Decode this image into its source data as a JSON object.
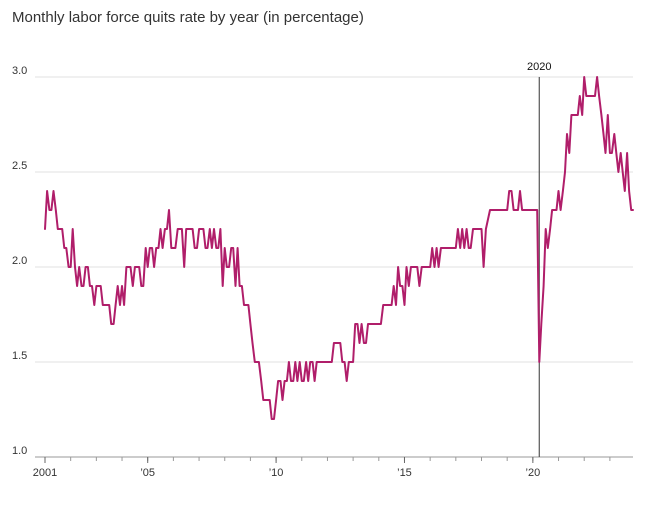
{
  "chart_data": {
    "type": "line",
    "title": "Monthly labor force quits rate by year (in percentage)",
    "xlabel": "",
    "ylabel": "",
    "xlim": [
      2001.0,
      2023.9
    ],
    "ylim": [
      1.0,
      3.0
    ],
    "y_ticks": [
      {
        "value": 1.0,
        "label": "1.0"
      },
      {
        "value": 1.5,
        "label": "1.5"
      },
      {
        "value": 2.0,
        "label": "2.0"
      },
      {
        "value": 2.5,
        "label": "2.5"
      },
      {
        "value": 3.0,
        "label": "3.0"
      }
    ],
    "x_ticks": [
      {
        "value": 2001,
        "label": "2001"
      },
      {
        "value": 2005,
        "label": "’05"
      },
      {
        "value": 2010,
        "label": "’10"
      },
      {
        "value": 2015,
        "label": "’15"
      },
      {
        "value": 2020,
        "label": "’20"
      }
    ],
    "grid": "horizontal",
    "annotation": {
      "x": 2020.25,
      "label": "2020"
    },
    "colors": {
      "line": "#b01e6a",
      "grid": "#e2e2e2",
      "annotation": "#555555"
    },
    "series": [
      {
        "points": [
          [
            2001.0,
            2.2
          ],
          [
            2001.08,
            2.4
          ],
          [
            2001.17,
            2.3
          ],
          [
            2001.25,
            2.3
          ],
          [
            2001.33,
            2.4
          ],
          [
            2001.42,
            2.3
          ],
          [
            2001.5,
            2.2
          ],
          [
            2001.67,
            2.2
          ],
          [
            2001.75,
            2.1
          ],
          [
            2001.83,
            2.1
          ],
          [
            2001.92,
            2.0
          ],
          [
            2002.0,
            2.0
          ],
          [
            2002.08,
            2.2
          ],
          [
            2002.17,
            2.0
          ],
          [
            2002.25,
            1.9
          ],
          [
            2002.33,
            2.0
          ],
          [
            2002.42,
            1.9
          ],
          [
            2002.5,
            1.9
          ],
          [
            2002.58,
            2.0
          ],
          [
            2002.67,
            2.0
          ],
          [
            2002.75,
            1.9
          ],
          [
            2002.83,
            1.9
          ],
          [
            2002.92,
            1.8
          ],
          [
            2003.0,
            1.9
          ],
          [
            2003.17,
            1.9
          ],
          [
            2003.25,
            1.8
          ],
          [
            2003.5,
            1.8
          ],
          [
            2003.58,
            1.7
          ],
          [
            2003.67,
            1.7
          ],
          [
            2003.75,
            1.8
          ],
          [
            2003.83,
            1.9
          ],
          [
            2003.92,
            1.8
          ],
          [
            2004.0,
            1.9
          ],
          [
            2004.08,
            1.8
          ],
          [
            2004.17,
            2.0
          ],
          [
            2004.33,
            2.0
          ],
          [
            2004.42,
            1.9
          ],
          [
            2004.5,
            2.0
          ],
          [
            2004.67,
            2.0
          ],
          [
            2004.75,
            1.9
          ],
          [
            2004.83,
            1.9
          ],
          [
            2004.92,
            2.1
          ],
          [
            2005.0,
            2.0
          ],
          [
            2005.08,
            2.1
          ],
          [
            2005.17,
            2.1
          ],
          [
            2005.25,
            2.0
          ],
          [
            2005.33,
            2.1
          ],
          [
            2005.42,
            2.1
          ],
          [
            2005.5,
            2.2
          ],
          [
            2005.58,
            2.1
          ],
          [
            2005.67,
            2.2
          ],
          [
            2005.75,
            2.2
          ],
          [
            2005.83,
            2.3
          ],
          [
            2005.92,
            2.1
          ],
          [
            2006.08,
            2.1
          ],
          [
            2006.17,
            2.2
          ],
          [
            2006.33,
            2.2
          ],
          [
            2006.42,
            2.0
          ],
          [
            2006.5,
            2.2
          ],
          [
            2006.75,
            2.2
          ],
          [
            2006.83,
            2.1
          ],
          [
            2006.92,
            2.1
          ],
          [
            2007.0,
            2.2
          ],
          [
            2007.17,
            2.2
          ],
          [
            2007.25,
            2.1
          ],
          [
            2007.33,
            2.1
          ],
          [
            2007.42,
            2.2
          ],
          [
            2007.5,
            2.1
          ],
          [
            2007.58,
            2.2
          ],
          [
            2007.67,
            2.1
          ],
          [
            2007.75,
            2.1
          ],
          [
            2007.83,
            2.2
          ],
          [
            2007.92,
            1.9
          ],
          [
            2008.0,
            2.1
          ],
          [
            2008.08,
            2.0
          ],
          [
            2008.17,
            2.0
          ],
          [
            2008.25,
            2.1
          ],
          [
            2008.33,
            2.1
          ],
          [
            2008.42,
            1.9
          ],
          [
            2008.5,
            2.1
          ],
          [
            2008.58,
            1.9
          ],
          [
            2008.67,
            1.9
          ],
          [
            2008.75,
            1.8
          ],
          [
            2008.92,
            1.8
          ],
          [
            2009.0,
            1.7
          ],
          [
            2009.08,
            1.6
          ],
          [
            2009.17,
            1.5
          ],
          [
            2009.33,
            1.5
          ],
          [
            2009.42,
            1.4
          ],
          [
            2009.5,
            1.3
          ],
          [
            2009.75,
            1.3
          ],
          [
            2009.83,
            1.2
          ],
          [
            2009.92,
            1.2
          ],
          [
            2010.0,
            1.3
          ],
          [
            2010.08,
            1.4
          ],
          [
            2010.17,
            1.4
          ],
          [
            2010.25,
            1.3
          ],
          [
            2010.33,
            1.4
          ],
          [
            2010.42,
            1.4
          ],
          [
            2010.5,
            1.5
          ],
          [
            2010.58,
            1.4
          ],
          [
            2010.67,
            1.4
          ],
          [
            2010.75,
            1.5
          ],
          [
            2010.83,
            1.4
          ],
          [
            2010.92,
            1.5
          ],
          [
            2011.0,
            1.4
          ],
          [
            2011.08,
            1.4
          ],
          [
            2011.17,
            1.5
          ],
          [
            2011.25,
            1.4
          ],
          [
            2011.33,
            1.5
          ],
          [
            2011.42,
            1.5
          ],
          [
            2011.5,
            1.4
          ],
          [
            2011.58,
            1.5
          ],
          [
            2012.0,
            1.5
          ],
          [
            2012.17,
            1.5
          ],
          [
            2012.25,
            1.6
          ],
          [
            2012.5,
            1.6
          ],
          [
            2012.58,
            1.5
          ],
          [
            2012.67,
            1.5
          ],
          [
            2012.75,
            1.4
          ],
          [
            2012.83,
            1.5
          ],
          [
            2013.0,
            1.5
          ],
          [
            2013.08,
            1.7
          ],
          [
            2013.17,
            1.7
          ],
          [
            2013.25,
            1.6
          ],
          [
            2013.33,
            1.7
          ],
          [
            2013.42,
            1.6
          ],
          [
            2013.5,
            1.6
          ],
          [
            2013.58,
            1.7
          ],
          [
            2014.08,
            1.7
          ],
          [
            2014.17,
            1.8
          ],
          [
            2014.5,
            1.8
          ],
          [
            2014.58,
            1.9
          ],
          [
            2014.67,
            1.8
          ],
          [
            2014.75,
            2.0
          ],
          [
            2014.83,
            1.9
          ],
          [
            2014.92,
            1.9
          ],
          [
            2015.0,
            1.8
          ],
          [
            2015.08,
            2.0
          ],
          [
            2015.17,
            1.9
          ],
          [
            2015.25,
            2.0
          ],
          [
            2015.5,
            2.0
          ],
          [
            2015.58,
            1.9
          ],
          [
            2015.67,
            2.0
          ],
          [
            2016.0,
            2.0
          ],
          [
            2016.08,
            2.1
          ],
          [
            2016.17,
            2.0
          ],
          [
            2016.25,
            2.1
          ],
          [
            2016.33,
            2.0
          ],
          [
            2016.42,
            2.1
          ],
          [
            2017.0,
            2.1
          ],
          [
            2017.08,
            2.2
          ],
          [
            2017.17,
            2.1
          ],
          [
            2017.25,
            2.2
          ],
          [
            2017.33,
            2.1
          ],
          [
            2017.42,
            2.2
          ],
          [
            2017.5,
            2.1
          ],
          [
            2017.58,
            2.1
          ],
          [
            2017.67,
            2.2
          ],
          [
            2018.0,
            2.2
          ],
          [
            2018.08,
            2.0
          ],
          [
            2018.17,
            2.2
          ],
          [
            2018.33,
            2.3
          ],
          [
            2019.0,
            2.3
          ],
          [
            2019.08,
            2.4
          ],
          [
            2019.17,
            2.4
          ],
          [
            2019.25,
            2.3
          ],
          [
            2019.42,
            2.3
          ],
          [
            2019.5,
            2.4
          ],
          [
            2019.58,
            2.3
          ],
          [
            2020.0,
            2.3
          ],
          [
            2020.17,
            2.3
          ],
          [
            2020.25,
            1.5
          ],
          [
            2020.33,
            1.7
          ],
          [
            2020.42,
            1.9
          ],
          [
            2020.5,
            2.2
          ],
          [
            2020.58,
            2.1
          ],
          [
            2020.67,
            2.2
          ],
          [
            2020.75,
            2.3
          ],
          [
            2020.92,
            2.3
          ],
          [
            2021.0,
            2.4
          ],
          [
            2021.08,
            2.3
          ],
          [
            2021.17,
            2.4
          ],
          [
            2021.25,
            2.5
          ],
          [
            2021.33,
            2.7
          ],
          [
            2021.42,
            2.6
          ],
          [
            2021.5,
            2.8
          ],
          [
            2021.75,
            2.8
          ],
          [
            2021.83,
            2.9
          ],
          [
            2021.92,
            2.8
          ],
          [
            2022.0,
            3.0
          ],
          [
            2022.08,
            2.9
          ],
          [
            2022.42,
            2.9
          ],
          [
            2022.5,
            3.0
          ],
          [
            2022.58,
            2.9
          ],
          [
            2022.67,
            2.8
          ],
          [
            2022.75,
            2.7
          ],
          [
            2022.83,
            2.6
          ],
          [
            2022.92,
            2.8
          ],
          [
            2023.0,
            2.6
          ],
          [
            2023.08,
            2.6
          ],
          [
            2023.17,
            2.7
          ],
          [
            2023.25,
            2.6
          ],
          [
            2023.33,
            2.5
          ],
          [
            2023.42,
            2.6
          ],
          [
            2023.5,
            2.5
          ],
          [
            2023.58,
            2.4
          ],
          [
            2023.67,
            2.6
          ],
          [
            2023.75,
            2.4
          ],
          [
            2023.83,
            2.3
          ],
          [
            2023.92,
            2.3
          ],
          [
            2024.25,
            2.3
          ]
        ]
      }
    ]
  }
}
